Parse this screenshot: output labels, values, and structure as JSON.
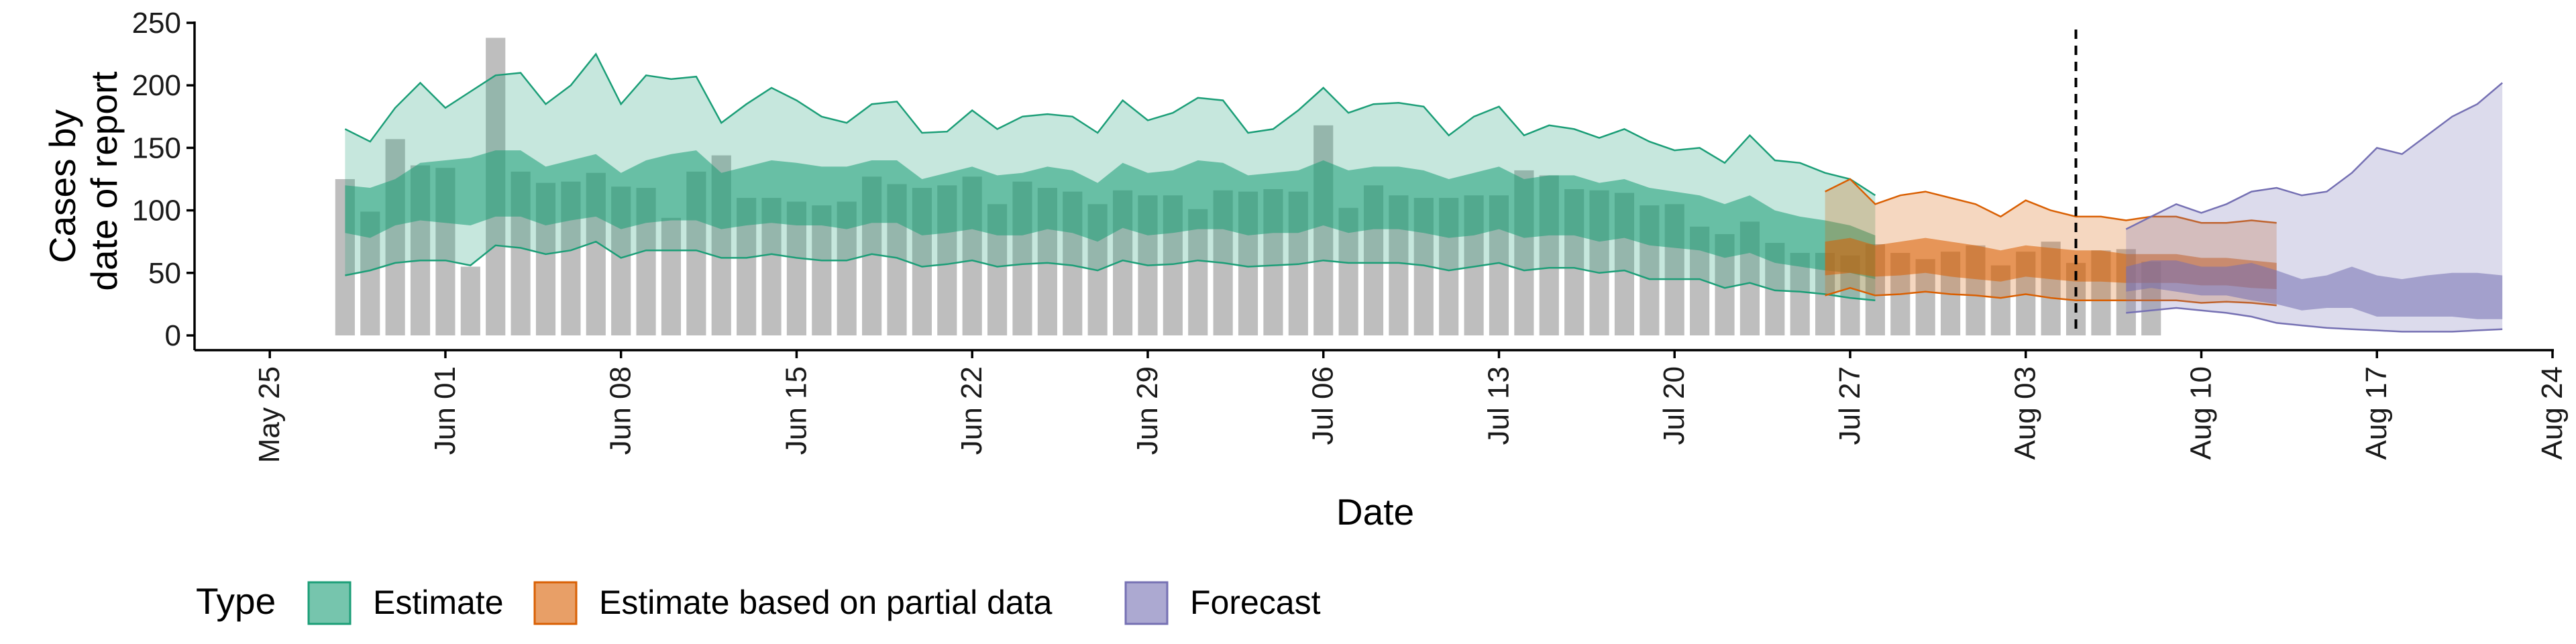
{
  "chart_data": {
    "type": "area",
    "xlabel": "Date",
    "ylabel_lines": [
      "Cases by",
      "date of report"
    ],
    "ylim": [
      0,
      250
    ],
    "y_ticks": [
      0,
      50,
      100,
      150,
      200,
      250
    ],
    "x_start": "2020-05-22",
    "x_end": "2020-08-24",
    "x_ticks": [
      {
        "date": "2020-05-25",
        "label": "May 25"
      },
      {
        "date": "2020-06-01",
        "label": "Jun 01"
      },
      {
        "date": "2020-06-08",
        "label": "Jun 08"
      },
      {
        "date": "2020-06-15",
        "label": "Jun 15"
      },
      {
        "date": "2020-06-22",
        "label": "Jun 22"
      },
      {
        "date": "2020-06-29",
        "label": "Jun 29"
      },
      {
        "date": "2020-07-06",
        "label": "Jul 06"
      },
      {
        "date": "2020-07-13",
        "label": "Jul 13"
      },
      {
        "date": "2020-07-20",
        "label": "Jul 20"
      },
      {
        "date": "2020-07-27",
        "label": "Jul 27"
      },
      {
        "date": "2020-08-03",
        "label": "Aug 03"
      },
      {
        "date": "2020-08-10",
        "label": "Aug 10"
      },
      {
        "date": "2020-08-17",
        "label": "Aug 17"
      },
      {
        "date": "2020-08-24",
        "label": "Aug 24"
      }
    ],
    "forecast_line_date": "2020-08-05",
    "bars": {
      "start_date": "2020-05-28",
      "color": "#bebebe",
      "values": [
        125,
        99,
        157,
        136,
        134,
        55,
        238,
        131,
        122,
        123,
        130,
        119,
        118,
        94,
        131,
        144,
        110,
        110,
        107,
        104,
        107,
        127,
        121,
        118,
        120,
        127,
        105,
        123,
        118,
        115,
        105,
        116,
        112,
        112,
        101,
        116,
        115,
        117,
        115,
        168,
        102,
        120,
        112,
        110,
        110,
        112,
        112,
        132,
        128,
        117,
        116,
        114,
        104,
        105,
        87,
        81,
        91,
        74,
        66,
        66,
        64,
        73,
        66,
        61,
        67,
        72,
        56,
        67,
        75,
        58,
        68,
        69,
        59
      ]
    },
    "legend_title": "Type",
    "series": [
      {
        "name": "Estimate",
        "color": "#1b9e77",
        "start_date": "2020-05-28",
        "upper90": [
          165,
          155,
          182,
          202,
          182,
          195,
          208,
          210,
          185,
          200,
          225,
          185,
          208,
          205,
          207,
          170,
          185,
          198,
          188,
          175,
          170,
          185,
          187,
          162,
          163,
          180,
          165,
          175,
          177,
          175,
          162,
          188,
          172,
          178,
          190,
          188,
          162,
          165,
          180,
          198,
          178,
          185,
          186,
          183,
          160,
          175,
          183,
          160,
          168,
          165,
          158,
          165,
          155,
          148,
          150,
          138,
          160,
          140,
          138,
          130,
          125,
          112
        ],
        "upper50": [
          120,
          118,
          125,
          138,
          140,
          142,
          148,
          148,
          135,
          140,
          145,
          130,
          140,
          145,
          148,
          130,
          135,
          140,
          138,
          135,
          135,
          140,
          140,
          125,
          130,
          135,
          128,
          130,
          135,
          132,
          122,
          138,
          130,
          132,
          140,
          138,
          128,
          130,
          132,
          140,
          132,
          135,
          135,
          132,
          125,
          130,
          135,
          125,
          128,
          128,
          122,
          125,
          118,
          115,
          112,
          105,
          112,
          100,
          95,
          92,
          88,
          80
        ],
        "lower50": [
          82,
          78,
          88,
          92,
          90,
          88,
          95,
          95,
          88,
          92,
          95,
          85,
          90,
          92,
          92,
          85,
          88,
          90,
          88,
          88,
          85,
          90,
          90,
          80,
          82,
          85,
          80,
          80,
          85,
          82,
          75,
          86,
          80,
          82,
          85,
          85,
          80,
          82,
          82,
          88,
          82,
          85,
          85,
          82,
          78,
          80,
          85,
          78,
          80,
          80,
          75,
          78,
          72,
          70,
          68,
          62,
          66,
          58,
          55,
          52,
          50,
          45
        ],
        "lower90": [
          48,
          52,
          58,
          60,
          60,
          56,
          72,
          70,
          65,
          68,
          75,
          62,
          68,
          68,
          68,
          62,
          62,
          65,
          62,
          60,
          60,
          65,
          62,
          55,
          57,
          60,
          55,
          57,
          58,
          56,
          52,
          60,
          56,
          57,
          60,
          58,
          55,
          56,
          57,
          60,
          58,
          58,
          58,
          56,
          52,
          55,
          58,
          52,
          54,
          54,
          50,
          52,
          45,
          45,
          45,
          38,
          42,
          36,
          35,
          33,
          30,
          28
        ]
      },
      {
        "name": "Estimate based on partial data",
        "color": "#d95f02",
        "start_date": "2020-07-26",
        "upper90": [
          115,
          125,
          105,
          112,
          115,
          110,
          105,
          95,
          108,
          100,
          95,
          95,
          92,
          95,
          95,
          90,
          90,
          92,
          90
        ],
        "upper50": [
          75,
          78,
          72,
          75,
          78,
          75,
          72,
          68,
          72,
          70,
          68,
          68,
          65,
          65,
          65,
          62,
          62,
          60,
          58
        ],
        "lower50": [
          48,
          50,
          47,
          48,
          50,
          47,
          45,
          43,
          47,
          45,
          43,
          43,
          42,
          42,
          42,
          40,
          40,
          38,
          37
        ],
        "lower90": [
          32,
          38,
          32,
          33,
          35,
          33,
          32,
          30,
          33,
          30,
          28,
          28,
          28,
          28,
          28,
          26,
          27,
          26,
          24
        ]
      },
      {
        "name": "Forecast",
        "color": "#7570b3",
        "start_date": "2020-08-07",
        "upper90": [
          85,
          95,
          105,
          98,
          105,
          115,
          118,
          112,
          115,
          130,
          150,
          145,
          160,
          175,
          185,
          202
        ],
        "upper50": [
          55,
          60,
          60,
          55,
          55,
          58,
          52,
          45,
          48,
          55,
          48,
          45,
          48,
          50,
          50,
          48
        ],
        "lower50": [
          35,
          38,
          35,
          32,
          32,
          28,
          25,
          20,
          22,
          22,
          15,
          15,
          15,
          15,
          13,
          13
        ],
        "lower90": [
          18,
          20,
          22,
          20,
          18,
          15,
          10,
          8,
          6,
          5,
          4,
          3,
          3,
          3,
          4,
          5
        ]
      }
    ]
  }
}
